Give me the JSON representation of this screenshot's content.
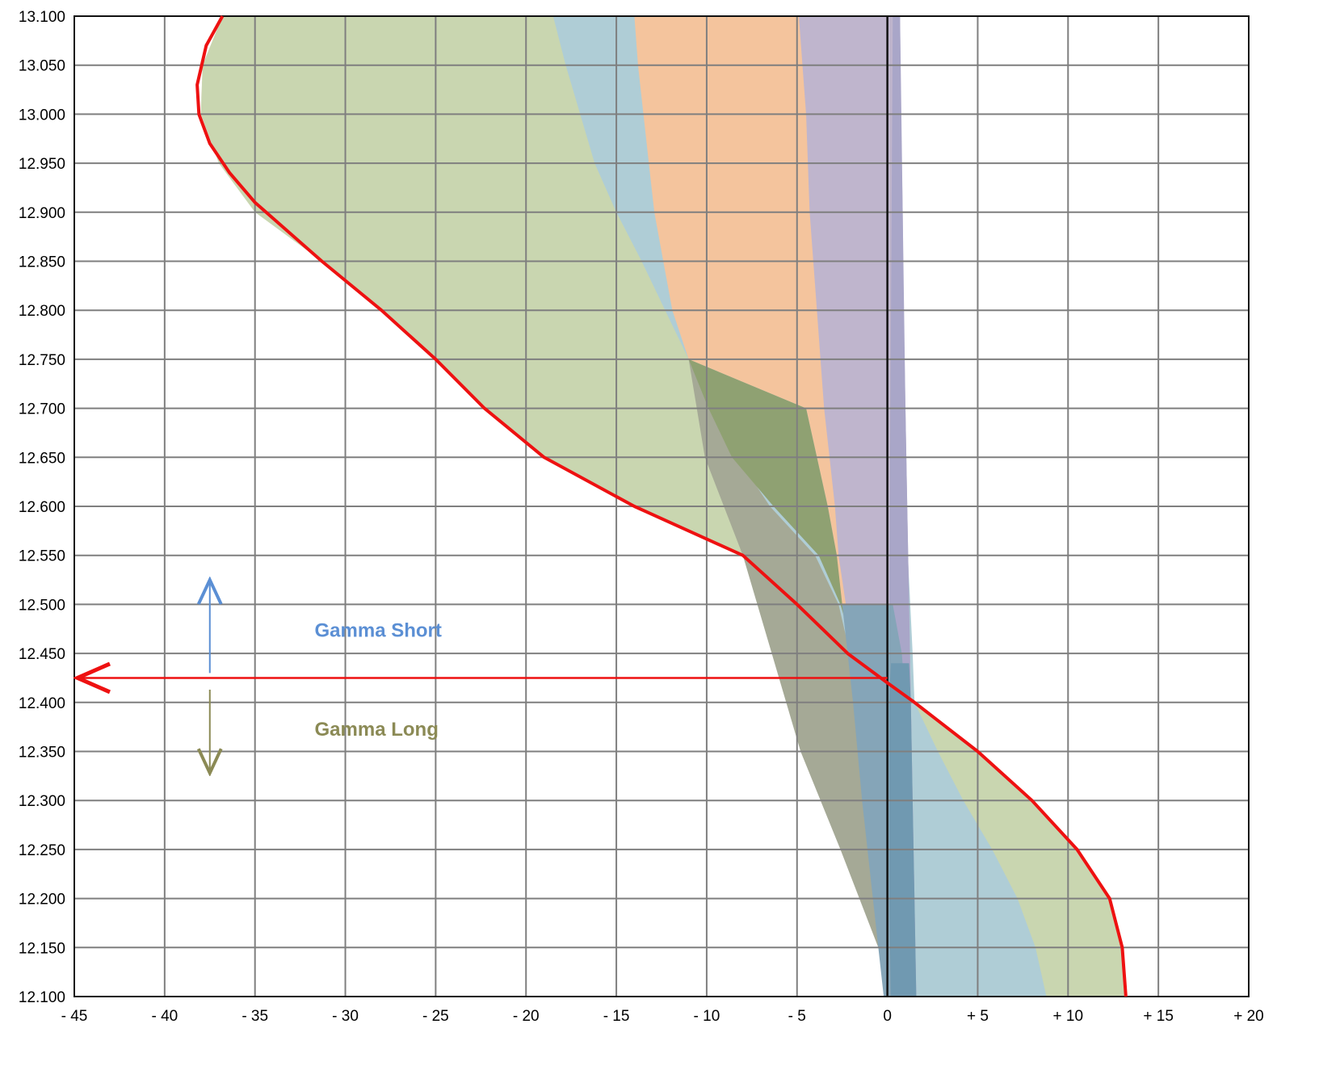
{
  "chart_data": {
    "type": "area",
    "orientation": "horizontal",
    "xlim": [
      -45,
      20
    ],
    "ylim": [
      12.1,
      13.1
    ],
    "x_ticks": [
      -45,
      -40,
      -35,
      -30,
      -25,
      -20,
      -15,
      -10,
      -5,
      0,
      5,
      10,
      15,
      20
    ],
    "x_tick_labels": [
      "- 45",
      "- 40",
      "- 35",
      "- 30",
      "- 25",
      "- 20",
      "- 15",
      "- 10",
      "- 5",
      "0",
      "+ 5",
      "+ 10",
      "+ 15",
      "+ 20"
    ],
    "y_ticks": [
      12.1,
      12.15,
      12.2,
      12.25,
      12.3,
      12.35,
      12.4,
      12.45,
      12.5,
      12.55,
      12.6,
      12.65,
      12.7,
      12.75,
      12.8,
      12.85,
      12.9,
      12.95,
      13.0,
      13.05,
      13.1
    ],
    "y_tick_labels": [
      "12.100",
      "12.150",
      "12.200",
      "12.250",
      "12.300",
      "12.350",
      "12.400",
      "12.450",
      "12.500",
      "12.550",
      "12.600",
      "12.650",
      "12.700",
      "12.750",
      "12.800",
      "12.850",
      "12.900",
      "12.950",
      "13.000",
      "13.050",
      "13.100"
    ],
    "grid": true,
    "colors": {
      "green": "#c9d6b0",
      "blue": "#afcdd6",
      "orange": "#f4c49d",
      "purple": "#bfb5cd",
      "purple_dark": "#a9a6c8",
      "dark_olive": "#8fa172",
      "gray_olive": "#a5a996",
      "steel": "#85a5b8",
      "steel_dark": "#7099b1",
      "curve": "#ee1111",
      "gamma_short": "#5b8fd4",
      "gamma_long": "#8b8a55"
    },
    "series": [
      {
        "color_key": "green",
        "left": [
          [
            12.1,
            0.2
          ],
          [
            12.15,
            -0.5
          ],
          [
            12.2,
            -1.0
          ],
          [
            12.3,
            -2.0
          ],
          [
            12.4,
            -3.0
          ],
          [
            12.45,
            -3.5
          ],
          [
            12.5,
            -5.0
          ],
          [
            12.55,
            -8.0
          ],
          [
            12.6,
            -14.0
          ],
          [
            12.65,
            -19.0
          ],
          [
            12.7,
            -22.3
          ],
          [
            12.75,
            -25.0
          ],
          [
            12.8,
            -28.0
          ],
          [
            12.85,
            -31.3
          ],
          [
            12.9,
            -35.0
          ],
          [
            12.95,
            -37.0
          ],
          [
            13.0,
            -38.0
          ],
          [
            13.05,
            -37.9
          ],
          [
            13.1,
            -36.8
          ]
        ],
        "right": [
          [
            12.1,
            13.2
          ],
          [
            12.15,
            13.0
          ],
          [
            12.2,
            12.3
          ],
          [
            12.25,
            10.5
          ],
          [
            12.3,
            8.0
          ],
          [
            12.35,
            5.0
          ],
          [
            12.4,
            1.5
          ],
          [
            12.45,
            1.0
          ],
          [
            12.5,
            1.0
          ],
          [
            12.6,
            0.9
          ],
          [
            12.75,
            0.8
          ],
          [
            12.9,
            0.7
          ],
          [
            13.1,
            0.6
          ]
        ]
      },
      {
        "color_key": "blue",
        "left": [
          [
            12.1,
            0.0
          ],
          [
            12.15,
            -0.4
          ],
          [
            12.2,
            -0.8
          ],
          [
            12.25,
            -1.1
          ],
          [
            12.3,
            -1.4
          ],
          [
            12.35,
            -1.6
          ],
          [
            12.4,
            -1.9
          ],
          [
            12.45,
            -2.2
          ],
          [
            12.5,
            -2.7
          ],
          [
            12.55,
            -4.0
          ],
          [
            12.6,
            -6.5
          ],
          [
            12.65,
            -8.3
          ],
          [
            12.7,
            -9.8
          ],
          [
            12.75,
            -11.0
          ],
          [
            12.8,
            -12.3
          ],
          [
            12.85,
            -13.6
          ],
          [
            12.9,
            -15.0
          ],
          [
            12.95,
            -16.2
          ],
          [
            13.0,
            -17.0
          ],
          [
            13.05,
            -17.8
          ],
          [
            13.1,
            -18.5
          ]
        ],
        "right": [
          [
            12.1,
            8.8
          ],
          [
            12.15,
            8.2
          ],
          [
            12.2,
            7.2
          ],
          [
            12.25,
            5.8
          ],
          [
            12.3,
            4.2
          ],
          [
            12.35,
            2.8
          ],
          [
            12.4,
            1.5
          ],
          [
            12.45,
            1.4
          ],
          [
            12.6,
            1.0
          ],
          [
            12.8,
            0.8
          ],
          [
            13.1,
            0.6
          ]
        ]
      },
      {
        "color_key": "orange",
        "left": [
          [
            12.1,
            0.0
          ],
          [
            12.2,
            -0.3
          ],
          [
            12.3,
            -0.6
          ],
          [
            12.4,
            -0.8
          ],
          [
            12.45,
            -1.5
          ],
          [
            12.5,
            -2.6
          ],
          [
            12.55,
            -2.8
          ],
          [
            12.6,
            -3.3
          ],
          [
            12.65,
            -3.9
          ],
          [
            12.7,
            -4.5
          ],
          [
            12.75,
            -11.0
          ],
          [
            12.8,
            -11.9
          ],
          [
            12.85,
            -12.4
          ],
          [
            12.9,
            -12.9
          ],
          [
            12.95,
            -13.2
          ],
          [
            13.0,
            -13.5
          ],
          [
            13.05,
            -13.8
          ],
          [
            13.1,
            -14.0
          ]
        ],
        "right": [
          [
            12.1,
            0.6
          ],
          [
            12.2,
            1.0
          ],
          [
            12.4,
            1.2
          ],
          [
            12.6,
            1.0
          ],
          [
            12.8,
            0.8
          ],
          [
            13.1,
            0.6
          ]
        ]
      },
      {
        "color_key": "purple",
        "left": [
          [
            12.1,
            -0.2
          ],
          [
            12.2,
            -0.4
          ],
          [
            12.3,
            -0.6
          ],
          [
            12.4,
            -0.9
          ],
          [
            12.45,
            -1.5
          ],
          [
            12.5,
            -2.3
          ],
          [
            12.55,
            -2.7
          ],
          [
            12.6,
            -2.9
          ],
          [
            12.65,
            -3.2
          ],
          [
            12.7,
            -3.5
          ],
          [
            12.75,
            -3.7
          ],
          [
            12.8,
            -3.9
          ],
          [
            12.85,
            -4.1
          ],
          [
            12.9,
            -4.3
          ],
          [
            12.95,
            -4.4
          ],
          [
            13.0,
            -4.5
          ],
          [
            13.05,
            -4.7
          ],
          [
            13.1,
            -4.9
          ]
        ],
        "right": [
          [
            12.1,
            1.6
          ],
          [
            12.2,
            1.5
          ],
          [
            12.3,
            1.4
          ],
          [
            12.4,
            1.3
          ],
          [
            12.5,
            1.2
          ],
          [
            12.6,
            1.1
          ],
          [
            12.7,
            1.0
          ],
          [
            12.8,
            0.9
          ],
          [
            12.9,
            0.85
          ],
          [
            13.0,
            0.75
          ],
          [
            13.1,
            0.7
          ]
        ]
      },
      {
        "color_key": "purple_dark",
        "left": [
          [
            12.1,
            0.0
          ],
          [
            12.5,
            0.1
          ],
          [
            12.8,
            0.2
          ],
          [
            13.1,
            0.3
          ]
        ],
        "right": [
          [
            12.1,
            1.6
          ],
          [
            12.3,
            1.4
          ],
          [
            12.5,
            1.2
          ],
          [
            12.7,
            1.0
          ],
          [
            12.9,
            0.85
          ],
          [
            13.1,
            0.7
          ]
        ]
      },
      {
        "color_key": "gray_olive",
        "left": [
          [
            12.15,
            -0.5
          ],
          [
            12.25,
            -2.6
          ],
          [
            12.35,
            -4.8
          ],
          [
            12.45,
            -6.4
          ],
          [
            12.55,
            -8.0
          ],
          [
            12.65,
            -10.1
          ],
          [
            12.75,
            -11.0
          ]
        ],
        "right": [
          [
            12.15,
            -0.3
          ],
          [
            12.25,
            -0.6
          ],
          [
            12.35,
            -1.2
          ],
          [
            12.42,
            -1.7
          ],
          [
            12.5,
            -2.7
          ],
          [
            12.55,
            -4.0
          ],
          [
            12.6,
            -6.5
          ],
          [
            12.65,
            -8.3
          ],
          [
            12.7,
            -9.8
          ],
          [
            12.75,
            -11.0
          ]
        ]
      },
      {
        "color_key": "dark_olive",
        "left": [
          [
            12.45,
            -1.8
          ],
          [
            12.5,
            -2.6
          ],
          [
            12.55,
            -3.8
          ],
          [
            12.6,
            -6.3
          ],
          [
            12.65,
            -8.6
          ],
          [
            12.7,
            -9.9
          ],
          [
            12.75,
            -11.0
          ]
        ],
        "right": [
          [
            12.45,
            -1.6
          ],
          [
            12.5,
            -2.5
          ],
          [
            12.55,
            -2.8
          ],
          [
            12.6,
            -3.3
          ],
          [
            12.65,
            -3.9
          ],
          [
            12.7,
            -4.5
          ],
          [
            12.75,
            -11.0
          ]
        ]
      },
      {
        "color_key": "steel",
        "left": [
          [
            12.1,
            -0.2
          ],
          [
            12.2,
            -0.8
          ],
          [
            12.3,
            -1.4
          ],
          [
            12.4,
            -1.9
          ],
          [
            12.45,
            -2.2
          ],
          [
            12.5,
            -2.5
          ]
        ],
        "right": [
          [
            12.1,
            0.4
          ],
          [
            12.2,
            0.6
          ],
          [
            12.3,
            0.8
          ],
          [
            12.4,
            1.0
          ],
          [
            12.45,
            0.8
          ],
          [
            12.5,
            0.3
          ]
        ]
      },
      {
        "color_key": "steel_dark",
        "left": [
          [
            12.1,
            0.2
          ],
          [
            12.2,
            0.1
          ],
          [
            12.3,
            0.1
          ],
          [
            12.4,
            0.1
          ],
          [
            12.44,
            0.2
          ]
        ],
        "right": [
          [
            12.1,
            1.6
          ],
          [
            12.2,
            1.5
          ],
          [
            12.3,
            1.4
          ],
          [
            12.4,
            1.3
          ],
          [
            12.44,
            1.2
          ]
        ]
      }
    ],
    "pnl_curve": [
      [
        13.1,
        -36.8
      ],
      [
        13.07,
        -37.7
      ],
      [
        13.03,
        -38.2
      ],
      [
        13.0,
        -38.1
      ],
      [
        12.97,
        -37.5
      ],
      [
        12.94,
        -36.4
      ],
      [
        12.91,
        -35.0
      ],
      [
        12.85,
        -31.3
      ],
      [
        12.8,
        -28.0
      ],
      [
        12.75,
        -25.0
      ],
      [
        12.7,
        -22.3
      ],
      [
        12.65,
        -19.0
      ],
      [
        12.6,
        -14.0
      ],
      [
        12.55,
        -8.0
      ],
      [
        12.5,
        -5.0
      ],
      [
        12.45,
        -2.2
      ],
      [
        12.42,
        0.0
      ],
      [
        12.4,
        1.5
      ],
      [
        12.35,
        5.0
      ],
      [
        12.3,
        8.0
      ],
      [
        12.25,
        10.5
      ],
      [
        12.2,
        12.3
      ],
      [
        12.15,
        13.0
      ],
      [
        12.1,
        13.2
      ]
    ],
    "annotations": {
      "strike_level": 12.425,
      "gamma_short": "Gamma Short",
      "gamma_long": "Gamma Long"
    }
  }
}
